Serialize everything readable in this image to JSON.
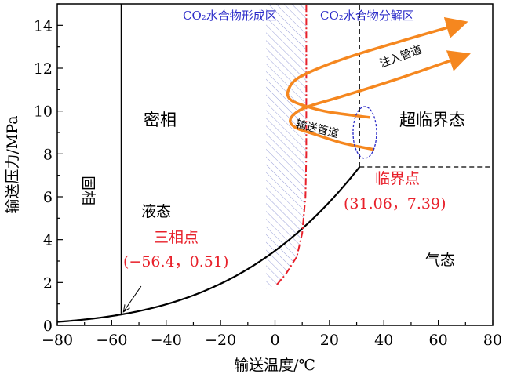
{
  "chart_data": {
    "type": "line",
    "xlabel": "输送温度/℃",
    "ylabel": "输送压力/MPa",
    "xlim": [
      -80,
      80
    ],
    "ylim": [
      0,
      15
    ],
    "xticks": [
      -80,
      -60,
      -40,
      -20,
      0,
      20,
      40,
      60,
      80
    ],
    "yticks": [
      0,
      2,
      4,
      6,
      8,
      10,
      12,
      14
    ],
    "grid": false,
    "triple_point": {
      "label": "三相点",
      "coords_label": "(−56.4，0.51)",
      "x": -56.4,
      "y": 0.51
    },
    "critical_point": {
      "label": "临界点",
      "coords_label": "(31.06，7.39)",
      "x": 31.06,
      "y": 7.39
    },
    "region_labels": {
      "solid": "固相",
      "dense": "密相",
      "liquid": "液态",
      "gas": "气态",
      "supercritical": "超临界态",
      "hydrate_formation": "CO₂水合物形成区",
      "hydrate_decomposition": "CO₂水合物分解区",
      "injection_pipeline": "注入管道",
      "transport_pipeline": "输送管道"
    },
    "hydrate_boundary": {
      "x": [
        0.7,
        4,
        8,
        10,
        11.2,
        11.5,
        11.5
      ],
      "y": [
        1.9,
        2.4,
        3.2,
        4.3,
        6,
        8,
        15
      ]
    },
    "hydrate_hatch_left_x": -3.3,
    "hydrate_hatch_bottom_y": 1.7,
    "pipeline_curves": [
      {
        "x": [
          35,
          20,
          12,
          6,
          4.7,
          8,
          18,
          31.5,
          50,
          69
        ],
        "y": [
          9.7,
          9.95,
          10.2,
          10.5,
          10.9,
          11.5,
          12.1,
          12.7,
          13.4,
          14.1
        ]
      },
      {
        "x": [
          36.5,
          25,
          15,
          8,
          5.6,
          7,
          12,
          25,
          45,
          70
        ],
        "y": [
          8.2,
          8.5,
          8.9,
          9.2,
          9.5,
          9.85,
          10.2,
          10.7,
          11.5,
          12.6
        ]
      }
    ],
    "ellipse_center": {
      "x": 33,
      "y": 9.0
    },
    "colors": {
      "curve": "#000000",
      "hydrate": "#e8202a",
      "pipeline": "#f5871f",
      "ellipse": "#2a2ac8",
      "hatch": "#9aa0d8",
      "blue_text": "#2a2ac8",
      "red_text": "#e8202a"
    }
  }
}
